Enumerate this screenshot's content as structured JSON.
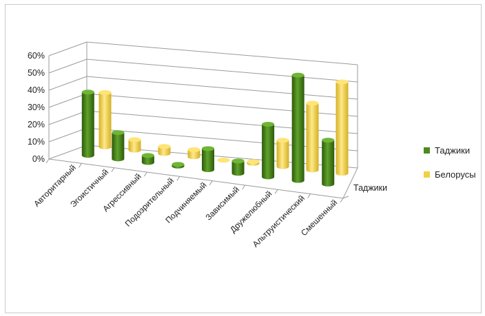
{
  "chart_data": {
    "type": "bar",
    "style": "3d-cylinder",
    "categories": [
      "Авторитарный",
      "Эгоистичный",
      "Агрессивный",
      "Подозрительный",
      "Подчиняемый",
      "Зависимый",
      "Дружелюбный",
      "Альтруистический",
      "Смешенный"
    ],
    "series": [
      {
        "name": "Таджики",
        "color": "#4e8a1e",
        "values": [
          36,
          15,
          4,
          1,
          12,
          7,
          30,
          60,
          25
        ]
      },
      {
        "name": "Белорусы",
        "color": "#f0d143",
        "values": [
          31,
          6,
          4,
          4,
          0,
          1,
          15,
          38,
          52
        ]
      }
    ],
    "yticks": [
      "0%",
      "10%",
      "20%",
      "30%",
      "40%",
      "50%",
      "60%"
    ],
    "ylim": [
      0,
      60
    ],
    "depth_label": "Таджики",
    "grid": true,
    "legend_position": "right"
  }
}
